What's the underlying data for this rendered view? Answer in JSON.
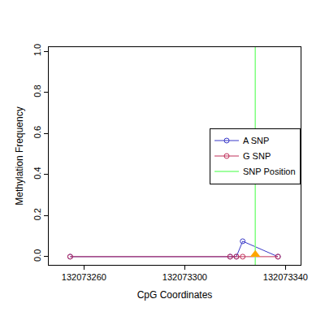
{
  "chart_data": {
    "type": "line",
    "x_label": "CpG Coordinates",
    "y_label": "Methylation Frequency",
    "marker": "open-circle",
    "series": [
      {
        "name": "A SNP",
        "color": "#3a3ac8",
        "x": [
          132073254.5,
          132073318,
          132073320.5,
          132073323,
          132073337
        ],
        "values": [
          0,
          0,
          0,
          0.075,
          0
        ]
      },
      {
        "name": "G SNP",
        "color": "#c0305a",
        "x": [
          132073254.5,
          132073318,
          132073320.5,
          132073323,
          132073337
        ],
        "values": [
          0,
          0,
          0,
          0,
          0
        ]
      }
    ],
    "snp_position": {
      "name": "SNP Position",
      "x": 132073328,
      "color": "#7fff7f"
    },
    "snp_marker": {
      "x": 132073328,
      "y": 0.01,
      "color": "orange",
      "marker": "triangle-up"
    },
    "xlim": [
      132073246,
      132073346
    ],
    "xticks": [
      132073260,
      132073300,
      132073340
    ],
    "ylim": [
      -0.04,
      1.02
    ],
    "yticks": [
      {
        "value": 0,
        "label": "0.0"
      },
      0.2,
      0.4,
      0.6,
      0.8,
      {
        "value": 1,
        "label": "1.0"
      }
    ],
    "legend": "right",
    "grid": false
  }
}
